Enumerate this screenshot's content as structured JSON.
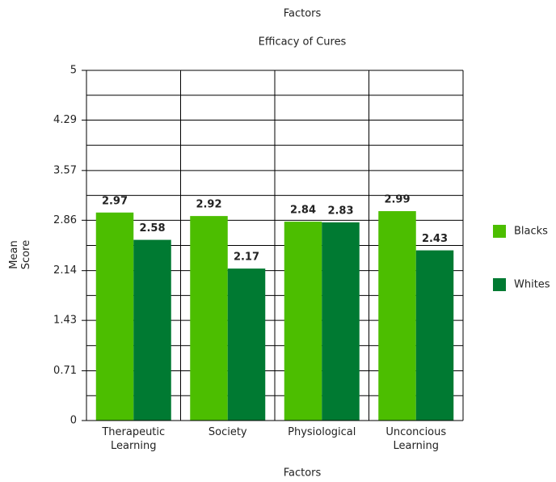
{
  "chart_data": {
    "type": "bar",
    "title": "Factors",
    "subtitle": "Efficacy of Cures",
    "x_label": "Factors",
    "y_label": "Mean Score",
    "categories": [
      "Therapeutic Learning",
      "Society",
      "Physiological",
      "Unconcious Learning"
    ],
    "series": [
      {
        "name": "Blacks",
        "color": "#4cbe00",
        "values": [
          2.97,
          2.92,
          2.84,
          2.99
        ]
      },
      {
        "name": "Whites",
        "color": "#007a32",
        "values": [
          2.58,
          2.17,
          2.83,
          2.43
        ]
      }
    ],
    "ylim": [
      0,
      5
    ],
    "yticks": [
      0,
      0.71,
      1.43,
      2.14,
      2.86,
      3.57,
      4.29,
      5
    ],
    "grid": true,
    "legend": "right"
  }
}
